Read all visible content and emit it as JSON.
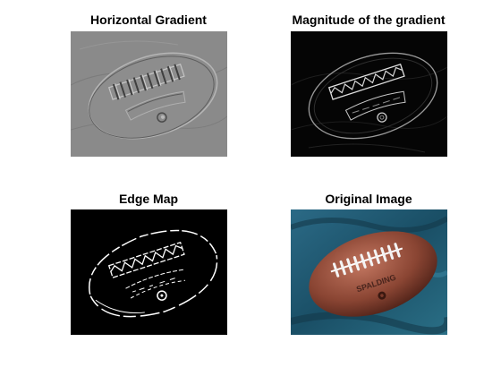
{
  "figure": {
    "panels": [
      {
        "title": "Horizontal Gradient",
        "image": "horizontal-gradient-football"
      },
      {
        "title": "Magnitude of the gradient",
        "image": "gradient-magnitude-football"
      },
      {
        "title": "Edge Map",
        "image": "edge-map-football"
      },
      {
        "title": "Original Image",
        "image": "original-football-photo"
      }
    ],
    "image_logo_text": "SPALDING",
    "colors": {
      "background": "#ffffff",
      "gradient_gray": "#8a8a8a",
      "magnitude_black": "#050505",
      "edge_black": "#000000",
      "ball_brown": "#7a3a2a",
      "cloth_teal": "#1f5f78"
    }
  }
}
